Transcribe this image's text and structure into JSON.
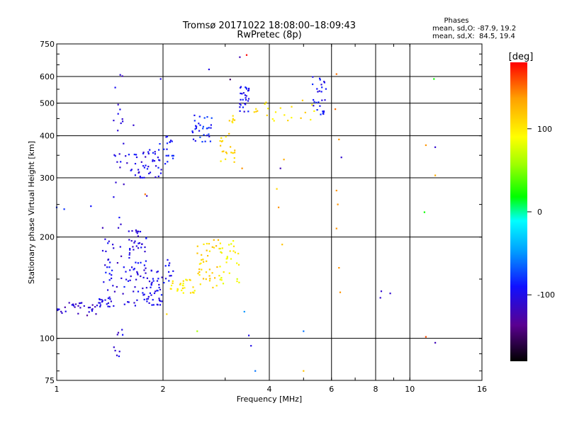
{
  "header": {
    "title_line1": "Tromsø 20171022 18:08:00–18:09:43",
    "title_line2": "RwPretec (8p)",
    "phases_title": "Phases",
    "phases_line1": "mean, sd,O: -87.9, 19.2",
    "phases_line2": "mean, sd,X:  84.5, 19.4"
  },
  "chart_data": {
    "type": "scatter",
    "title": "Tromsø 20171022 18:08:00–18:09:43",
    "subtitle": "RwPretec (8p)",
    "xlabel": "Frequency [MHz]",
    "ylabel": "Stationary phase Virtual Height [km]",
    "x_scale": "log",
    "y_scale": "log",
    "xlim": [
      1,
      16
    ],
    "ylim": [
      75,
      750
    ],
    "x_ticks": [
      1,
      2,
      4,
      6,
      8,
      10,
      16
    ],
    "y_ticks": [
      75,
      100,
      200,
      300,
      400,
      500,
      600,
      750
    ],
    "x_gridlines": [
      2,
      4,
      6,
      8,
      10
    ],
    "y_gridlines": [
      100,
      200,
      300,
      400,
      500,
      600
    ],
    "grid": true,
    "colorbar": {
      "label": "[deg]",
      "range": [
        -180,
        180
      ],
      "ticks": [
        100,
        0,
        -100
      ],
      "stops": [
        "#000000",
        "#5a0090",
        "#1010ff",
        "#00a0ff",
        "#00ffff",
        "#00ff00",
        "#a0ff00",
        "#ffff00",
        "#ffa000",
        "#ff0000"
      ]
    },
    "clusters": [
      {
        "f": [
          1.0,
          1.3
        ],
        "h": [
          118,
          128
        ],
        "phase": -110,
        "n": 30
      },
      {
        "f": [
          1.3,
          1.45
        ],
        "h": [
          124,
          132
        ],
        "phase": -100,
        "n": 18
      },
      {
        "f": [
          1.35,
          1.45
        ],
        "h": [
          130,
          200
        ],
        "phase": -100,
        "n": 24
      },
      {
        "f": [
          1.45,
          1.55
        ],
        "h": [
          75,
          640
        ],
        "phase": -105,
        "n": 40
      },
      {
        "f": [
          1.55,
          2.0
        ],
        "h": [
          125,
          160
        ],
        "phase": -100,
        "n": 70
      },
      {
        "f": [
          1.6,
          1.8
        ],
        "h": [
          160,
          210
        ],
        "phase": -100,
        "n": 40
      },
      {
        "f": [
          2.0,
          2.15
        ],
        "h": [
          145,
          175
        ],
        "phase": -95,
        "n": 12
      },
      {
        "f": [
          2.1,
          2.5
        ],
        "h": [
          135,
          150
        ],
        "phase": 100,
        "n": 28
      },
      {
        "f": [
          2.5,
          2.9
        ],
        "h": [
          140,
          200
        ],
        "phase": 110,
        "n": 40
      },
      {
        "f": [
          2.9,
          3.3
        ],
        "h": [
          145,
          195
        ],
        "phase": 90,
        "n": 30
      },
      {
        "f": [
          1.55,
          1.8
        ],
        "h": [
          300,
          360
        ],
        "phase": -100,
        "n": 24
      },
      {
        "f": [
          1.8,
          2.0
        ],
        "h": [
          300,
          380
        ],
        "phase": -95,
        "n": 24
      },
      {
        "f": [
          2.0,
          2.2
        ],
        "h": [
          330,
          400
        ],
        "phase": -90,
        "n": 18
      },
      {
        "f": [
          2.4,
          2.75
        ],
        "h": [
          380,
          470
        ],
        "phase": -85,
        "n": 32
      },
      {
        "f": [
          2.9,
          3.2
        ],
        "h": [
          330,
          460
        ],
        "phase": 110,
        "n": 28
      },
      {
        "f": [
          3.3,
          3.5
        ],
        "h": [
          470,
          570
        ],
        "phase": -95,
        "n": 28
      },
      {
        "f": [
          3.6,
          5.5
        ],
        "h": [
          440,
          510
        ],
        "phase": 105,
        "n": 22
      },
      {
        "f": [
          5.3,
          5.8
        ],
        "h": [
          460,
          600
        ],
        "phase": -95,
        "n": 28
      }
    ],
    "points": [
      {
        "f": 1.0,
        "h": 245,
        "phase": -80
      },
      {
        "f": 1.05,
        "h": 242,
        "phase": -80
      },
      {
        "f": 1.25,
        "h": 247,
        "phase": -90
      },
      {
        "f": 1.45,
        "h": 263,
        "phase": -100
      },
      {
        "f": 1.8,
        "h": 265,
        "phase": -110
      },
      {
        "f": 1.78,
        "h": 268,
        "phase": 150
      },
      {
        "f": 1.35,
        "h": 213,
        "phase": -120
      },
      {
        "f": 1.65,
        "h": 430,
        "phase": -110
      },
      {
        "f": 1.97,
        "h": 590,
        "phase": -100
      },
      {
        "f": 2.7,
        "h": 630,
        "phase": -100
      },
      {
        "f": 3.1,
        "h": 588,
        "phase": -150
      },
      {
        "f": 3.3,
        "h": 685,
        "phase": -120
      },
      {
        "f": 3.45,
        "h": 695,
        "phase": 180
      },
      {
        "f": 3.35,
        "h": 320,
        "phase": 140
      },
      {
        "f": 4.3,
        "h": 320,
        "phase": -120
      },
      {
        "f": 4.4,
        "h": 340,
        "phase": 130
      },
      {
        "f": 4.2,
        "h": 278,
        "phase": 110
      },
      {
        "f": 4.25,
        "h": 245,
        "phase": 140
      },
      {
        "f": 4.35,
        "h": 190,
        "phase": 120
      },
      {
        "f": 5.0,
        "h": 105,
        "phase": -60
      },
      {
        "f": 5.0,
        "h": 80,
        "phase": 120
      },
      {
        "f": 3.4,
        "h": 120,
        "phase": -50
      },
      {
        "f": 3.5,
        "h": 102,
        "phase": -100
      },
      {
        "f": 3.55,
        "h": 95,
        "phase": -100
      },
      {
        "f": 3.65,
        "h": 80,
        "phase": -60
      },
      {
        "f": 2.5,
        "h": 105,
        "phase": 60
      },
      {
        "f": 2.05,
        "h": 118,
        "phase": 110
      },
      {
        "f": 1.22,
        "h": 117,
        "phase": -130
      },
      {
        "f": 6.2,
        "h": 610,
        "phase": 150
      },
      {
        "f": 6.15,
        "h": 480,
        "phase": 150
      },
      {
        "f": 6.3,
        "h": 390,
        "phase": 140
      },
      {
        "f": 6.4,
        "h": 345,
        "phase": -110
      },
      {
        "f": 6.2,
        "h": 275,
        "phase": 140
      },
      {
        "f": 6.25,
        "h": 250,
        "phase": 140
      },
      {
        "f": 6.2,
        "h": 212,
        "phase": 140
      },
      {
        "f": 6.3,
        "h": 162,
        "phase": 140
      },
      {
        "f": 6.35,
        "h": 137,
        "phase": 140
      },
      {
        "f": 8.3,
        "h": 138,
        "phase": -110
      },
      {
        "f": 8.25,
        "h": 132,
        "phase": -110
      },
      {
        "f": 8.8,
        "h": 136,
        "phase": -110
      },
      {
        "f": 11.7,
        "h": 590,
        "phase": 20
      },
      {
        "f": 11.1,
        "h": 375,
        "phase": 140
      },
      {
        "f": 11.8,
        "h": 370,
        "phase": -110
      },
      {
        "f": 11.8,
        "h": 305,
        "phase": 130
      },
      {
        "f": 11.0,
        "h": 237,
        "phase": 20
      },
      {
        "f": 11.1,
        "h": 101,
        "phase": 160
      },
      {
        "f": 11.8,
        "h": 97,
        "phase": -120
      }
    ]
  }
}
